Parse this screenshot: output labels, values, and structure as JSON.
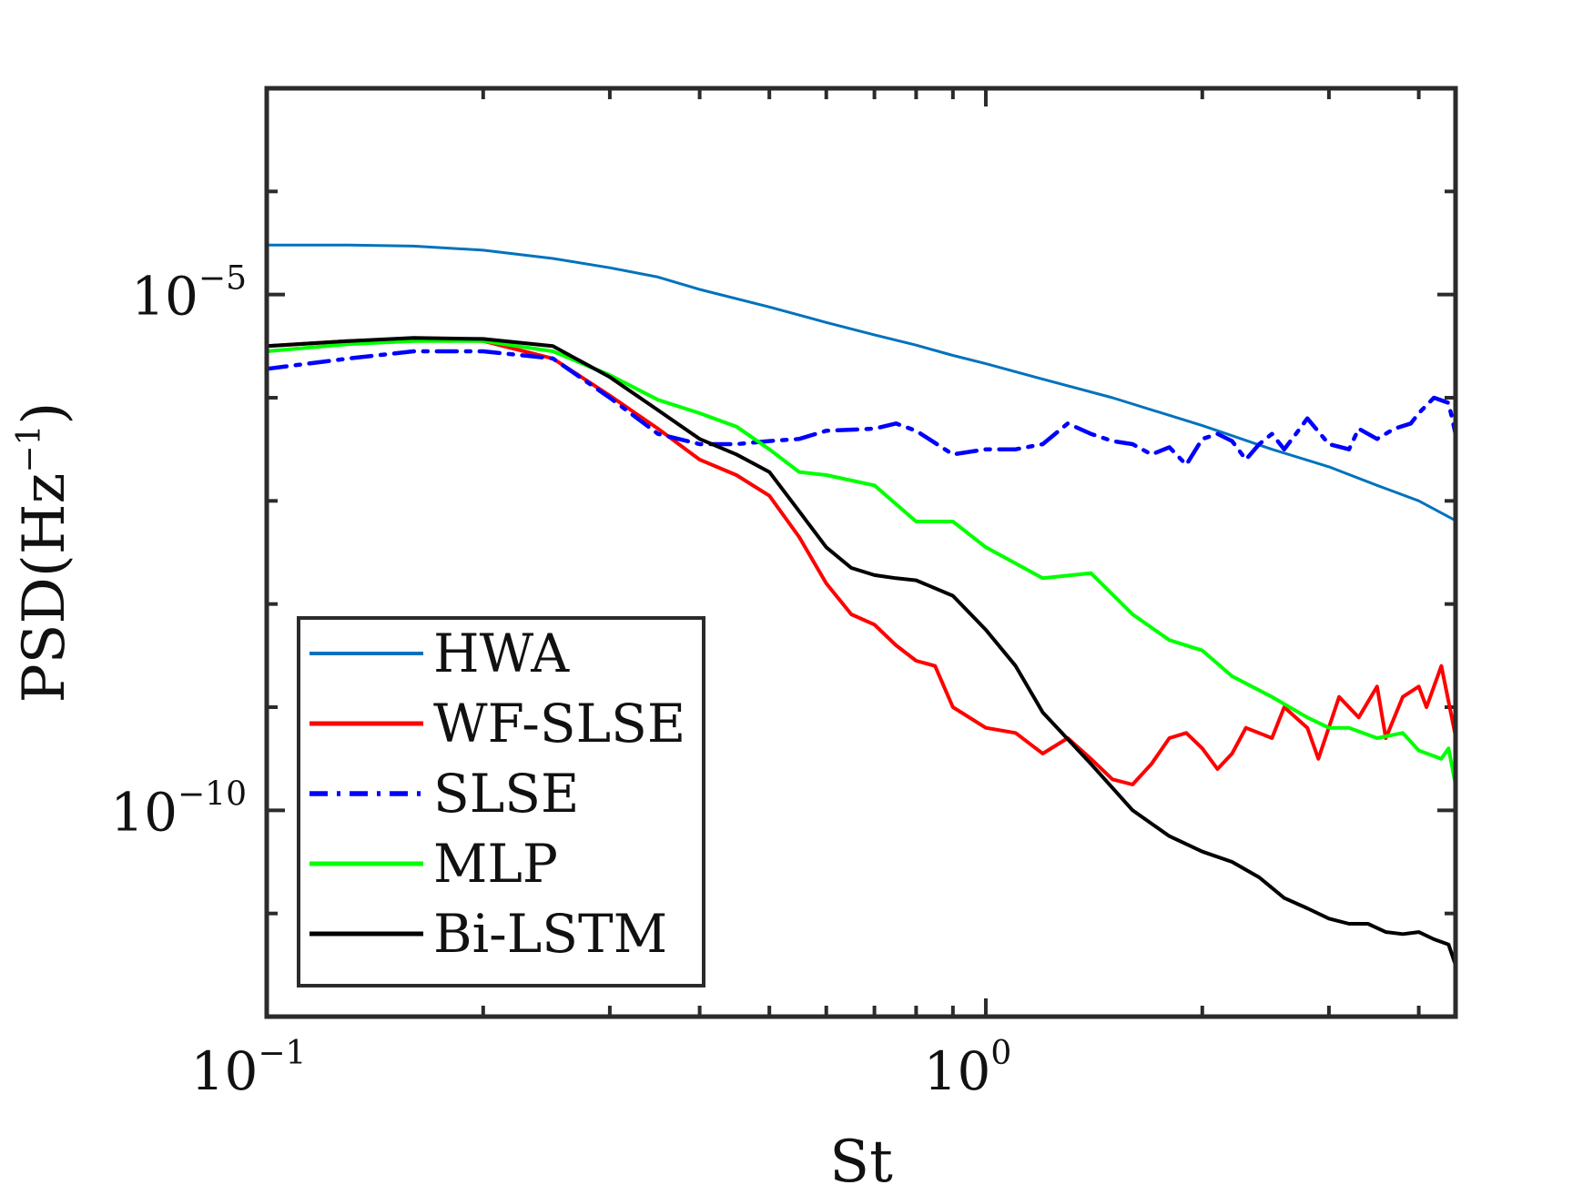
{
  "chart_data": {
    "type": "line",
    "title": "",
    "xlabel": "St",
    "ylabel": "PSD(Hz^-1)",
    "ylabel_parts": {
      "main": "PSD(Hz",
      "exp": "−1",
      "close": ")"
    },
    "xscale": "log",
    "yscale": "log",
    "xlim": [
      0.1,
      4.5
    ],
    "ylim_log10": [
      -12,
      -3
    ],
    "x_ticks": [
      {
        "value": 0.1,
        "base": "10",
        "exp": "−1"
      },
      {
        "value": 1,
        "base": "10",
        "exp": "0"
      }
    ],
    "y_ticks": [
      {
        "log10": -5,
        "base": "10",
        "exp": "−5"
      },
      {
        "log10": -10,
        "base": "10",
        "exp": "−10"
      }
    ],
    "legend_location": "bottom-left",
    "series": [
      {
        "name": "HWA",
        "color": "#0072BD",
        "style": "solid",
        "width": 3,
        "x": [
          0.1,
          0.13,
          0.16,
          0.2,
          0.25,
          0.3,
          0.35,
          0.4,
          0.5,
          0.6,
          0.7,
          0.8,
          0.9,
          1.0,
          1.2,
          1.5,
          2.0,
          2.5,
          3.0,
          3.5,
          4.0,
          4.5
        ],
        "log10_y": [
          -4.52,
          -4.52,
          -4.53,
          -4.57,
          -4.65,
          -4.74,
          -4.83,
          -4.95,
          -5.12,
          -5.27,
          -5.39,
          -5.49,
          -5.59,
          -5.67,
          -5.82,
          -6.0,
          -6.27,
          -6.5,
          -6.67,
          -6.85,
          -7.0,
          -7.19
        ]
      },
      {
        "name": "WF-SLSE",
        "color": "#FF0000",
        "style": "solid",
        "width": 4,
        "x": [
          0.1,
          0.13,
          0.16,
          0.2,
          0.25,
          0.3,
          0.35,
          0.4,
          0.45,
          0.5,
          0.55,
          0.6,
          0.65,
          0.7,
          0.75,
          0.8,
          0.85,
          0.9,
          1.0,
          1.1,
          1.2,
          1.3,
          1.4,
          1.5,
          1.6,
          1.7,
          1.8,
          1.9,
          2.0,
          2.1,
          2.2,
          2.3,
          2.5,
          2.6,
          2.8,
          2.9,
          3.1,
          3.3,
          3.5,
          3.6,
          3.8,
          4.0,
          4.1,
          4.3,
          4.5
        ],
        "log10_y": [
          -5.5,
          -5.45,
          -5.43,
          -5.45,
          -5.62,
          -5.98,
          -6.3,
          -6.6,
          -6.75,
          -6.95,
          -7.35,
          -7.8,
          -8.1,
          -8.2,
          -8.4,
          -8.55,
          -8.6,
          -9.0,
          -9.2,
          -9.25,
          -9.45,
          -9.3,
          -9.5,
          -9.7,
          -9.75,
          -9.55,
          -9.3,
          -9.25,
          -9.4,
          -9.6,
          -9.45,
          -9.2,
          -9.3,
          -9.0,
          -9.2,
          -9.5,
          -8.9,
          -9.1,
          -8.8,
          -9.3,
          -8.9,
          -8.8,
          -9.0,
          -8.6,
          -9.28
        ]
      },
      {
        "name": "SLSE",
        "color": "#0000FF",
        "style": "dashdot",
        "width": 4.5,
        "x": [
          0.1,
          0.13,
          0.16,
          0.2,
          0.25,
          0.3,
          0.35,
          0.4,
          0.45,
          0.5,
          0.55,
          0.6,
          0.7,
          0.75,
          0.8,
          0.9,
          1.0,
          1.1,
          1.2,
          1.3,
          1.4,
          1.5,
          1.6,
          1.7,
          1.8,
          1.9,
          2.0,
          2.1,
          2.2,
          2.3,
          2.4,
          2.5,
          2.6,
          2.7,
          2.8,
          3.0,
          3.2,
          3.3,
          3.5,
          3.7,
          3.9,
          4.0,
          4.2,
          4.4,
          4.5
        ],
        "log10_y": [
          -5.72,
          -5.62,
          -5.55,
          -5.55,
          -5.62,
          -6.0,
          -6.35,
          -6.45,
          -6.45,
          -6.42,
          -6.4,
          -6.32,
          -6.3,
          -6.25,
          -6.32,
          -6.55,
          -6.5,
          -6.5,
          -6.45,
          -6.25,
          -6.35,
          -6.42,
          -6.45,
          -6.55,
          -6.48,
          -6.65,
          -6.4,
          -6.35,
          -6.42,
          -6.6,
          -6.45,
          -6.35,
          -6.5,
          -6.35,
          -6.2,
          -6.45,
          -6.5,
          -6.3,
          -6.4,
          -6.3,
          -6.25,
          -6.15,
          -6.0,
          -6.05,
          -6.35
        ]
      },
      {
        "name": "MLP",
        "color": "#00FF00",
        "style": "solid",
        "width": 4,
        "x": [
          0.1,
          0.13,
          0.16,
          0.2,
          0.25,
          0.3,
          0.35,
          0.4,
          0.45,
          0.5,
          0.55,
          0.6,
          0.7,
          0.8,
          0.9,
          1.0,
          1.2,
          1.4,
          1.6,
          1.8,
          2.0,
          2.2,
          2.5,
          2.8,
          3.0,
          3.2,
          3.5,
          3.8,
          4.0,
          4.3,
          4.4,
          4.5
        ],
        "log10_y": [
          -5.55,
          -5.48,
          -5.45,
          -5.45,
          -5.55,
          -5.78,
          -6.02,
          -6.15,
          -6.28,
          -6.5,
          -6.72,
          -6.75,
          -6.85,
          -7.2,
          -7.2,
          -7.45,
          -7.75,
          -7.7,
          -8.1,
          -8.35,
          -8.45,
          -8.7,
          -8.9,
          -9.1,
          -9.2,
          -9.2,
          -9.3,
          -9.25,
          -9.42,
          -9.5,
          -9.4,
          -9.75
        ]
      },
      {
        "name": "Bi-LSTM",
        "color": "#000000",
        "style": "solid",
        "width": 4,
        "x": [
          0.1,
          0.13,
          0.16,
          0.2,
          0.25,
          0.3,
          0.35,
          0.4,
          0.45,
          0.5,
          0.55,
          0.6,
          0.65,
          0.7,
          0.75,
          0.8,
          0.9,
          1.0,
          1.1,
          1.2,
          1.4,
          1.6,
          1.8,
          2.0,
          2.2,
          2.4,
          2.6,
          2.8,
          3.0,
          3.2,
          3.4,
          3.6,
          3.8,
          4.0,
          4.2,
          4.4,
          4.5
        ],
        "log10_y": [
          -5.5,
          -5.45,
          -5.42,
          -5.43,
          -5.5,
          -5.8,
          -6.12,
          -6.4,
          -6.55,
          -6.72,
          -7.1,
          -7.45,
          -7.65,
          -7.72,
          -7.75,
          -7.77,
          -7.92,
          -8.25,
          -8.6,
          -9.05,
          -9.55,
          -10.0,
          -10.25,
          -10.4,
          -10.5,
          -10.65,
          -10.85,
          -10.95,
          -11.05,
          -11.1,
          -11.1,
          -11.18,
          -11.2,
          -11.18,
          -11.25,
          -11.3,
          -11.5
        ]
      }
    ]
  }
}
